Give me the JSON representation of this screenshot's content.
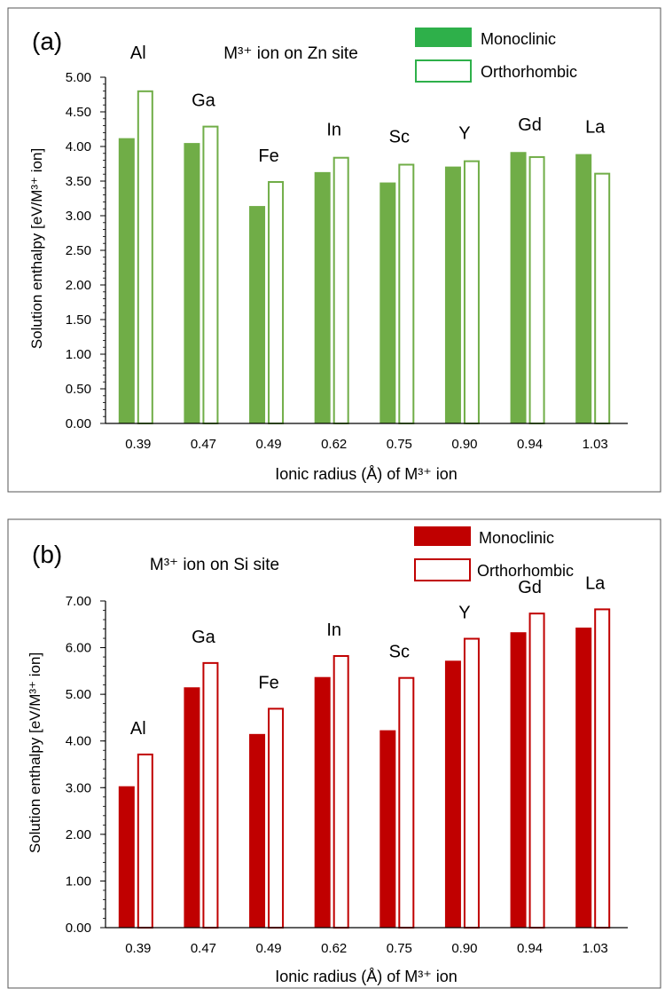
{
  "chart_data": [
    {
      "type": "bar",
      "panel_label": "(a)",
      "title": "M³⁺ ion on Zn site",
      "ylabel": "Solution enthalpy [eV/M³⁺ ion]",
      "xlabel": "Ionic radius (Å) of M³⁺ ion",
      "categories": [
        "0.39",
        "0.47",
        "0.49",
        "0.62",
        "0.75",
        "0.90",
        "0.94",
        "1.03"
      ],
      "ion_labels": [
        "Al",
        "Ga",
        "Fe",
        "In",
        "Sc",
        "Y",
        "Gd",
        "La"
      ],
      "series": [
        {
          "name": "Monoclinic",
          "values": [
            4.12,
            4.05,
            3.14,
            3.63,
            3.48,
            3.71,
            3.92,
            3.89
          ]
        },
        {
          "name": "Orthorhombic",
          "values": [
            4.81,
            4.3,
            3.5,
            3.85,
            3.75,
            3.8,
            3.86,
            3.62
          ]
        }
      ],
      "ylim": [
        0,
        5
      ],
      "yticks": [
        "0.00",
        "0.50",
        "1.00",
        "1.50",
        "2.00",
        "2.50",
        "3.00",
        "3.50",
        "4.00",
        "4.50",
        "5.00"
      ],
      "legend_position": "top-right",
      "grid": false,
      "colors": {
        "fill": "#70ad47",
        "legend_fill": "#2eb04a",
        "legend_border": "#2eb04a"
      }
    },
    {
      "type": "bar",
      "panel_label": "(b)",
      "title": "M³⁺ ion on Si site",
      "ylabel": "Solution enthalpy [eV/M³⁺ ion]",
      "xlabel": "Ionic radius (Å) of M³⁺ ion",
      "categories": [
        "0.39",
        "0.47",
        "0.49",
        "0.62",
        "0.75",
        "0.90",
        "0.94",
        "1.03"
      ],
      "ion_labels": [
        "Al",
        "Ga",
        "Fe",
        "In",
        "Sc",
        "Y",
        "Gd",
        "La"
      ],
      "series": [
        {
          "name": "Monoclinic",
          "values": [
            3.03,
            5.15,
            4.15,
            5.37,
            4.23,
            5.72,
            6.33,
            6.43
          ]
        },
        {
          "name": "Orthorhombic",
          "values": [
            3.73,
            5.69,
            4.71,
            5.84,
            5.37,
            6.21,
            6.75,
            6.84
          ]
        }
      ],
      "ylim": [
        0,
        7
      ],
      "yticks": [
        "0.00",
        "1.00",
        "2.00",
        "3.00",
        "4.00",
        "5.00",
        "6.00",
        "7.00"
      ],
      "legend_position": "top-right",
      "grid": false,
      "colors": {
        "fill": "#c00000",
        "legend_fill": "#c00000",
        "legend_border": "#c00000"
      }
    }
  ]
}
